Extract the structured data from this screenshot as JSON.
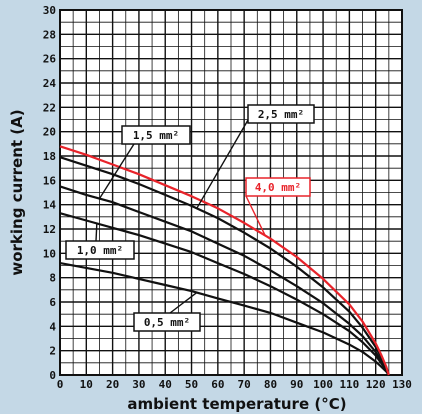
{
  "chart_data": {
    "type": "line",
    "xlabel": "ambient temperature (°C)",
    "ylabel": "working current (A)",
    "xlim": [
      0,
      130
    ],
    "ylim": [
      0,
      30
    ],
    "x_ticks": [
      0,
      10,
      20,
      30,
      40,
      50,
      60,
      70,
      80,
      90,
      100,
      110,
      120,
      130
    ],
    "y_ticks": [
      0,
      2,
      4,
      6,
      8,
      10,
      12,
      14,
      16,
      18,
      20,
      22,
      24,
      26,
      28,
      30
    ],
    "grid": true,
    "series": [
      {
        "name": "0,5 mm²",
        "color": "#111111",
        "x": [
          0,
          10,
          20,
          30,
          40,
          50,
          60,
          70,
          80,
          90,
          100,
          110,
          115,
          120,
          122,
          124,
          125
        ],
        "y": [
          9.2,
          8.8,
          8.4,
          7.9,
          7.4,
          6.9,
          6.3,
          5.7,
          5.1,
          4.3,
          3.5,
          2.5,
          1.9,
          1.1,
          0.7,
          0.3,
          0
        ]
      },
      {
        "name": "1,0 mm²",
        "color": "#111111",
        "x": [
          0,
          10,
          20,
          30,
          40,
          50,
          60,
          70,
          80,
          90,
          100,
          110,
          115,
          120,
          122,
          124,
          125
        ],
        "y": [
          13.3,
          12.7,
          12.1,
          11.5,
          10.8,
          10.1,
          9.2,
          8.3,
          7.3,
          6.2,
          5.0,
          3.6,
          2.7,
          1.6,
          1.0,
          0.4,
          0
        ]
      },
      {
        "name": "1,5 mm²",
        "color": "#111111",
        "x": [
          0,
          10,
          20,
          30,
          40,
          50,
          60,
          70,
          80,
          90,
          100,
          110,
          115,
          120,
          122,
          124,
          125
        ],
        "y": [
          15.5,
          14.8,
          14.2,
          13.4,
          12.6,
          11.8,
          10.8,
          9.8,
          8.6,
          7.3,
          5.9,
          4.2,
          3.2,
          1.9,
          1.2,
          0.5,
          0
        ]
      },
      {
        "name": "2,5 mm²",
        "color": "#111111",
        "x": [
          0,
          10,
          20,
          30,
          40,
          50,
          60,
          70,
          80,
          90,
          100,
          110,
          115,
          120,
          122,
          124,
          125
        ],
        "y": [
          17.9,
          17.2,
          16.5,
          15.7,
          14.8,
          13.9,
          12.9,
          11.7,
          10.4,
          8.9,
          7.2,
          5.2,
          3.9,
          2.3,
          1.5,
          0.6,
          0
        ]
      },
      {
        "name": "4,0 mm²",
        "color": "#e8232a",
        "x": [
          0,
          10,
          20,
          30,
          40,
          50,
          60,
          70,
          80,
          90,
          100,
          110,
          115,
          120,
          122,
          124,
          125
        ],
        "y": [
          18.8,
          18.1,
          17.3,
          16.5,
          15.6,
          14.7,
          13.7,
          12.5,
          11.2,
          9.7,
          7.9,
          5.8,
          4.4,
          2.6,
          1.7,
          0.7,
          0
        ]
      }
    ],
    "annotations": [
      {
        "text": "1,5 mm²",
        "series": "1,5 mm²"
      },
      {
        "text": "2,5 mm²",
        "series": "2,5 mm²"
      },
      {
        "text": "4,0 mm²",
        "series": "4,0 mm²",
        "color": "#e8232a"
      },
      {
        "text": "1,0 mm²",
        "series": "1,0 mm²"
      },
      {
        "text": "0,5 mm²",
        "series": "0,5 mm²"
      }
    ]
  }
}
